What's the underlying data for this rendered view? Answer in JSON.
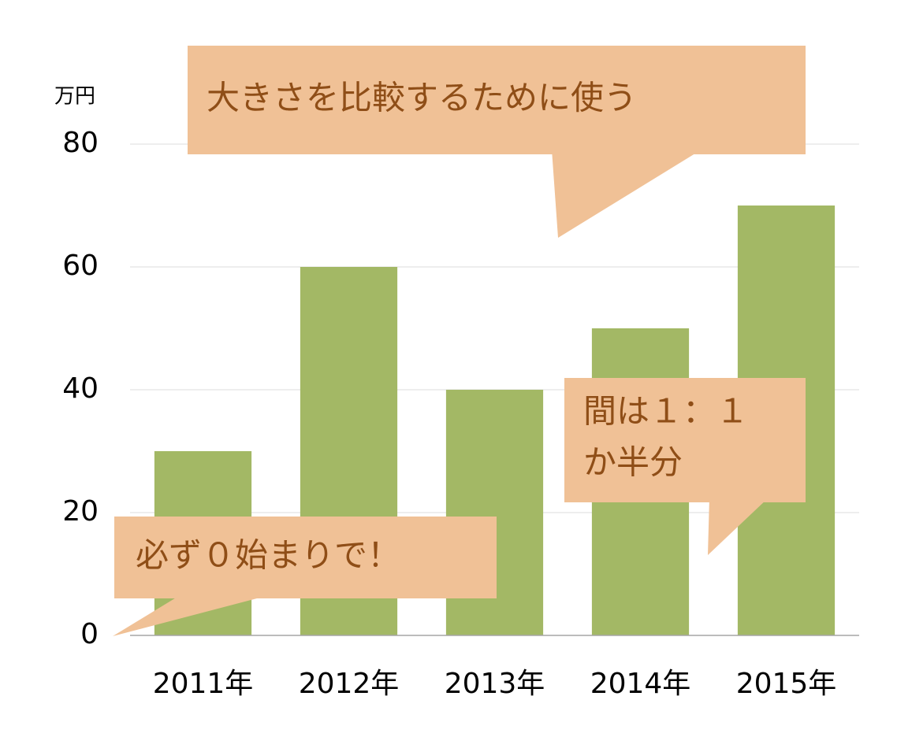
{
  "chart_data": {
    "type": "bar",
    "y_unit": "万円",
    "categories": [
      "2011年",
      "2012年",
      "2013年",
      "2014年",
      "2015年"
    ],
    "values": [
      30,
      60,
      40,
      50,
      70
    ],
    "color": "#a3b865",
    "ylim": [
      0,
      80
    ],
    "yticks": [
      0,
      20,
      40,
      60,
      80
    ],
    "grid": true,
    "annotations": [
      [
        "大きさを比較するために使う"
      ],
      [
        "間は１：１",
        "か半分"
      ],
      [
        "必ず０始まりで！"
      ]
    ]
  }
}
